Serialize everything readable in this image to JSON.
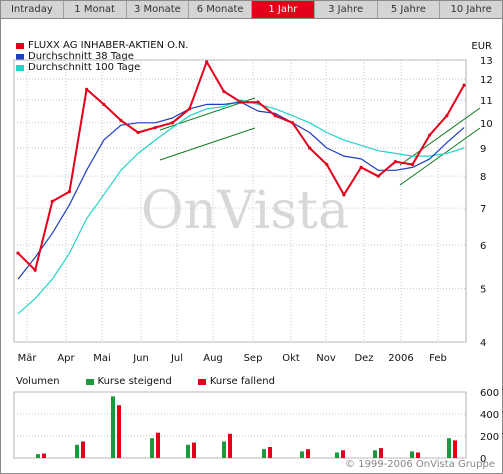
{
  "tabs": [
    {
      "label": "Intraday",
      "active": false
    },
    {
      "label": "1 Monat",
      "active": false
    },
    {
      "label": "3 Monate",
      "active": false
    },
    {
      "label": "6 Monate",
      "active": false
    },
    {
      "label": "1 Jahr",
      "active": true
    },
    {
      "label": "3 Jahre",
      "active": false
    },
    {
      "label": "5 Jahre",
      "active": false
    },
    {
      "label": "10 Jahre",
      "active": false
    }
  ],
  "currency": "EUR",
  "watermark": "OnVista",
  "copyright": "© 1999-2006 OnVista Gruppe",
  "volume_header": {
    "title": "Volumen",
    "up_label": "Kurse steigend",
    "down_label": "Kurse fallend"
  },
  "colors": {
    "price": "#e2001a",
    "avg38": "#1f3fbf",
    "avg100": "#22d3c8",
    "vol_up": "#1a9a3a",
    "vol_down": "#e2001a",
    "trend": "#0a7a1a",
    "active_tab": "#e2001a"
  },
  "chart_data": [
    {
      "type": "line",
      "ylog": true,
      "ylim": [
        4,
        13
      ],
      "y_ticks": [
        4,
        5,
        6,
        7,
        8,
        9,
        10,
        11,
        12,
        13
      ],
      "x_ticks": [
        "Mär",
        "Apr",
        "Mai",
        "Jun",
        "Jul",
        "Aug",
        "Sep",
        "Okt",
        "Nov",
        "Dez",
        "2006",
        "Feb"
      ],
      "grid": true,
      "legend_position": "top-left",
      "x": [
        "Mär 1",
        "Mär 15",
        "Apr 1",
        "Apr 15",
        "Mai 1",
        "Mai 15",
        "Jun 1",
        "Jun 15",
        "Jul 1",
        "Jul 15",
        "Aug 1",
        "Aug 10",
        "Aug 15",
        "Sep 1",
        "Sep 15",
        "Okt 1",
        "Okt 15",
        "Nov 1",
        "Nov 15",
        "Nov 25",
        "Dez 1",
        "Dez 15",
        "2006",
        "Jan 15",
        "Feb 1",
        "Feb 15",
        "Feb 24"
      ],
      "series": [
        {
          "name": "FLUXX AG INHABER-AKTIEN O.N.",
          "values": [
            5.8,
            5.4,
            7.2,
            7.5,
            11.5,
            10.8,
            10.1,
            9.6,
            9.8,
            10.0,
            10.6,
            12.9,
            11.4,
            10.9,
            10.9,
            10.3,
            10.0,
            9.0,
            8.4,
            7.4,
            8.3,
            8.0,
            8.5,
            8.4,
            9.5,
            10.3,
            11.7
          ]
        },
        {
          "name": "Durchschnitt 38 Tage",
          "values": [
            5.2,
            5.7,
            6.3,
            7.1,
            8.2,
            9.3,
            9.9,
            10.0,
            10.0,
            10.2,
            10.6,
            10.8,
            10.8,
            10.9,
            10.5,
            10.4,
            10.0,
            9.6,
            9.0,
            8.7,
            8.6,
            8.2,
            8.2,
            8.3,
            8.6,
            9.2,
            9.8
          ]
        },
        {
          "name": "Durchschnitt 100 Tage",
          "values": [
            4.5,
            4.8,
            5.2,
            5.8,
            6.7,
            7.4,
            8.2,
            8.8,
            9.3,
            9.8,
            10.3,
            10.6,
            10.7,
            11.0,
            10.8,
            10.6,
            10.3,
            10.0,
            9.6,
            9.3,
            9.1,
            8.9,
            8.8,
            8.7,
            8.7,
            8.8,
            9.0
          ]
        }
      ]
    },
    {
      "type": "bar",
      "title": "Volumen",
      "ylim": [
        0,
        600000
      ],
      "y_ticks": [
        "0",
        "200 T",
        "400 T",
        "600 T"
      ],
      "x": [
        "Mär",
        "Apr",
        "Mai",
        "Jun",
        "Jul",
        "Aug",
        "Sep",
        "Okt",
        "Nov",
        "Dez",
        "2006",
        "Feb"
      ],
      "series": [
        {
          "name": "Kurse steigend",
          "values": [
            35000,
            120000,
            560000,
            180000,
            120000,
            150000,
            80000,
            60000,
            50000,
            70000,
            60000,
            180000
          ]
        },
        {
          "name": "Kurse fallend",
          "values": [
            40000,
            150000,
            480000,
            230000,
            140000,
            220000,
            100000,
            80000,
            70000,
            90000,
            50000,
            160000
          ]
        }
      ]
    }
  ]
}
